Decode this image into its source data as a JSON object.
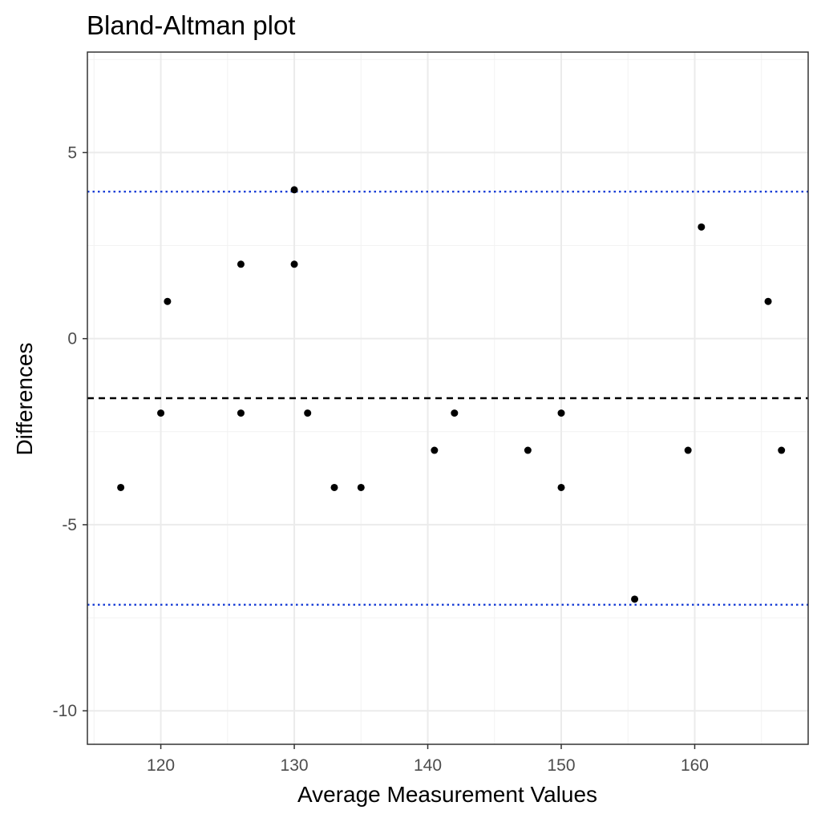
{
  "chart_data": {
    "type": "scatter",
    "title": "Bland-Altman plot",
    "xlabel": "Average Measurement Values",
    "ylabel": "Differences",
    "xlim": [
      114.5,
      168.5
    ],
    "ylim": [
      -10.9,
      7.7
    ],
    "x_ticks": [
      120,
      130,
      140,
      150,
      160
    ],
    "y_ticks": [
      5,
      0,
      -5,
      -10
    ],
    "x_tick_labels": [
      "120",
      "130",
      "140",
      "150",
      "160"
    ],
    "y_tick_labels": [
      "5",
      "0",
      "-5",
      "-10"
    ],
    "grid": true,
    "points": [
      {
        "x": 117,
        "y": -4
      },
      {
        "x": 120,
        "y": -2
      },
      {
        "x": 120.5,
        "y": 1
      },
      {
        "x": 126,
        "y": 2
      },
      {
        "x": 126,
        "y": -2
      },
      {
        "x": 130,
        "y": 4
      },
      {
        "x": 130,
        "y": 2
      },
      {
        "x": 131,
        "y": -2
      },
      {
        "x": 133,
        "y": -4
      },
      {
        "x": 135,
        "y": -4
      },
      {
        "x": 140.5,
        "y": -3
      },
      {
        "x": 142,
        "y": -2
      },
      {
        "x": 147.5,
        "y": -3
      },
      {
        "x": 150,
        "y": -2
      },
      {
        "x": 150,
        "y": -4
      },
      {
        "x": 155.5,
        "y": -7
      },
      {
        "x": 159.5,
        "y": -3
      },
      {
        "x": 160.5,
        "y": 3
      },
      {
        "x": 165.5,
        "y": 1
      },
      {
        "x": 166.5,
        "y": -3
      }
    ],
    "reference_lines": [
      {
        "type": "mean",
        "y": -1.6,
        "color": "#000000",
        "style": "dashed"
      },
      {
        "type": "upper-limit-of-agreement",
        "y": 3.95,
        "color": "#1a3fd6",
        "style": "dotted"
      },
      {
        "type": "lower-limit-of-agreement",
        "y": -7.15,
        "color": "#1a3fd6",
        "style": "dotted"
      }
    ],
    "colors": {
      "points": "#000000",
      "grid_major": "#ebebeb",
      "grid_minor": "#f2f2f2",
      "panel_border": "#333333"
    }
  }
}
